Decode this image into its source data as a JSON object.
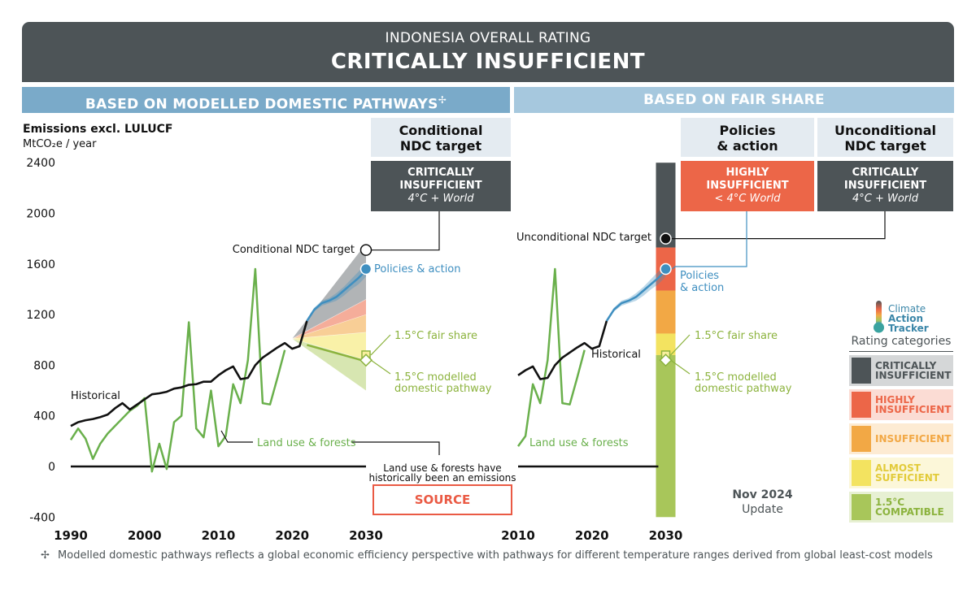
{
  "banner": {
    "subtitle": "INDONESIA OVERALL RATING",
    "title": "CRITICALLY INSUFFICIENT"
  },
  "sections": {
    "left": "BASED ON MODELLED DOMESTIC PATHWAYS",
    "left_mark": "✢",
    "right": "BASED ON FAIR SHARE"
  },
  "columns": {
    "conditional": {
      "line1": "Conditional",
      "line2": "NDC target",
      "rating1": "CRITICALLY",
      "rating2": "INSUFFICIENT",
      "temp": "4°C + World",
      "color": "#4d5457"
    },
    "policies": {
      "line1": "Policies",
      "line2": "& action",
      "rating1": "HIGHLY",
      "rating2": "INSUFFICIENT",
      "temp": "< 4°C World",
      "color": "#ec6648"
    },
    "unconditional": {
      "line1": "Unconditional",
      "line2": "NDC target",
      "rating1": "CRITICALLY",
      "rating2": "INSUFFICIENT",
      "temp": "4°C + World",
      "color": "#4d5457"
    }
  },
  "source_label": "SOURCE",
  "update": {
    "date": "Nov 2024",
    "label": "Update"
  },
  "footnote": {
    "mark": "✢",
    "text": "Modelled domestic pathways reflects a global economic efficiency perspective with pathways for different temperature ranges derived from global least-cost models"
  },
  "legend": {
    "logo": [
      "Climate",
      "Action",
      "Tracker"
    ],
    "title": "Rating categories",
    "items": [
      {
        "line1": "CRITICALLY",
        "line2": "INSUFFICIENT",
        "swatch": "#4d5457",
        "bg": "#d5d7d8",
        "text": "#4d5457"
      },
      {
        "line1": "HIGHLY",
        "line2": "INSUFFICIENT",
        "swatch": "#ec6648",
        "bg": "#fbdcd4",
        "text": "#ec6648"
      },
      {
        "line1": "INSUFFICIENT",
        "line2": "",
        "swatch": "#f2a845",
        "bg": "#fdebd3",
        "text": "#f2a845"
      },
      {
        "line1": "ALMOST",
        "line2": "SUFFICIENT",
        "swatch": "#f3e360",
        "bg": "#fcf7d9",
        "text": "#e2cb3a"
      },
      {
        "line1": "1.5°C",
        "line2": "COMPATIBLE",
        "swatch": "#a8c65a",
        "bg": "#e7f0d3",
        "text": "#8cb33e"
      }
    ]
  },
  "chart_data": {
    "type": "line",
    "ylabel_line1": "Emissions excl. LULUCF",
    "ylabel_line2": "MtCO₂e / year",
    "ylim": [
      -400,
      2400
    ],
    "yticks": [
      -400,
      0,
      400,
      800,
      1200,
      1600,
      2000,
      2400
    ],
    "left_panel": {
      "xlim": [
        1990,
        2030
      ],
      "xticks": [
        1990,
        2000,
        2010,
        2020,
        2030
      ]
    },
    "right_panel": {
      "xlim": [
        2010,
        2030
      ],
      "xticks": [
        2010,
        2020,
        2030
      ]
    },
    "series": [
      {
        "name": "Historical",
        "color": "#111111",
        "x": [
          1990,
          1991,
          1992,
          1993,
          1994,
          1995,
          1996,
          1997,
          1998,
          1999,
          2000,
          2001,
          2002,
          2003,
          2004,
          2005,
          2006,
          2007,
          2008,
          2009,
          2010,
          2011,
          2012,
          2013,
          2014,
          2015,
          2016,
          2017,
          2018,
          2019,
          2020,
          2021,
          2022
        ],
        "y": [
          320,
          350,
          365,
          375,
          390,
          410,
          460,
          500,
          450,
          490,
          530,
          570,
          578,
          590,
          615,
          625,
          645,
          650,
          670,
          670,
          720,
          760,
          790,
          690,
          700,
          800,
          860,
          900,
          940,
          975,
          930,
          950,
          1150
        ]
      },
      {
        "name": "Land use & forests",
        "color": "#6ab04c",
        "x": [
          1990,
          1991,
          1992,
          1993,
          1994,
          1995,
          1996,
          1997,
          1998,
          1999,
          2000,
          2001,
          2002,
          2003,
          2004,
          2005,
          2006,
          2007,
          2008,
          2009,
          2010,
          2011,
          2012,
          2013,
          2014,
          2015,
          2016,
          2017,
          2018,
          2019
        ],
        "y": [
          210,
          300,
          220,
          60,
          180,
          260,
          320,
          380,
          440,
          480,
          540,
          -40,
          180,
          -20,
          350,
          400,
          1140,
          300,
          230,
          600,
          160,
          240,
          650,
          500,
          840,
          1560,
          500,
          490,
          700,
          920
        ]
      },
      {
        "name": "Policies & action",
        "color": "#3f8fc0",
        "x": [
          2022,
          2023,
          2024,
          2025,
          2026,
          2027,
          2028,
          2029,
          2030
        ],
        "y": [
          1150,
          1240,
          1290,
          1310,
          1340,
          1390,
          1440,
          1490,
          1550
        ],
        "upper": [
          1165,
          1255,
          1310,
          1330,
          1370,
          1420,
          1480,
          1540,
          1600
        ],
        "lower": [
          1135,
          1225,
          1270,
          1290,
          1310,
          1350,
          1400,
          1440,
          1500
        ]
      }
    ],
    "modelled_pathways": {
      "x_start": 2020,
      "x_end": 2030,
      "start_value": 1010,
      "bands": [
        {
          "category": "critically insufficient",
          "color": "#a9acae",
          "upper": 1760,
          "lower": 1320
        },
        {
          "category": "highly insufficient",
          "color": "#f4a48f",
          "upper": 1320,
          "lower": 1200
        },
        {
          "category": "insufficient",
          "color": "#f7c98b",
          "upper": 1200,
          "lower": 1060
        },
        {
          "category": "almost sufficient",
          "color": "#f8ef9e",
          "upper": 1060,
          "lower": 840
        },
        {
          "category": "1.5°C compatible",
          "color": "#d3e3a8",
          "upper": 840,
          "lower": 600
        }
      ],
      "modelled_line": [
        [
          2022,
          960
        ],
        [
          2030,
          830
        ]
      ]
    },
    "fair_share_bar": {
      "x": 2030,
      "segments": [
        {
          "category": "critically insufficient",
          "color": "#4d5457",
          "from": 1730,
          "to": 2400
        },
        {
          "category": "highly insufficient",
          "color": "#ec6648",
          "from": 1390,
          "to": 1730
        },
        {
          "category": "insufficient",
          "color": "#f2a845",
          "from": 1050,
          "to": 1390
        },
        {
          "category": "almost sufficient",
          "color": "#f3e360",
          "from": 880,
          "to": 1050
        },
        {
          "category": "1.5°C compatible",
          "color": "#a8c65a",
          "from": -400,
          "to": 880
        }
      ]
    },
    "markers": {
      "conditional_ndc": {
        "label": "Conditional NDC target",
        "x": 2030,
        "y": 1710
      },
      "unconditional_ndc": {
        "label": "Unconditional NDC target",
        "x": 2030,
        "y": 1800
      },
      "policies_left": {
        "label": "Policies & action",
        "x": 2030,
        "y": 1560
      },
      "policies_right": {
        "line1": "Policies",
        "line2": "& action",
        "x": 2030,
        "y": 1560
      },
      "fair_share": {
        "label": "1.5°C fair share",
        "x": 2030,
        "y": 880
      },
      "modelled_pathway": {
        "line1": "1.5°C modelled",
        "line2": "domestic pathway",
        "x": 2030,
        "y": 840
      }
    },
    "annotations": {
      "historical": "Historical",
      "land_use": "Land use & forests",
      "source_note_line1": "Land use & forests have",
      "source_note_line2": "historically been an emissions"
    }
  }
}
